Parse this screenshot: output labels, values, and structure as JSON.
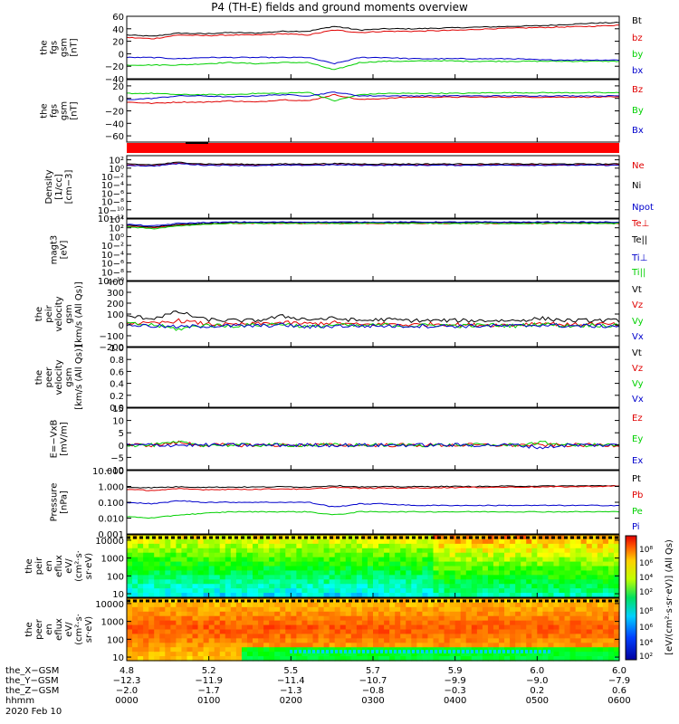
{
  "title": "P4 (TH-E) fields and ground moments overview",
  "colors": {
    "black": "#000000",
    "red": "#e00000",
    "green": "#00d000",
    "blue": "#0000cc",
    "bar": "#ff0000"
  },
  "chart_data": [
    {
      "type": "line",
      "ylabel": [
        "the",
        "fgs",
        "gsm",
        "[nT]"
      ],
      "ylim": [
        -40,
        60
      ],
      "ticks": [
        "60",
        "40",
        "20",
        "0",
        "−20",
        "−40"
      ],
      "tickvals": [
        60,
        40,
        20,
        0,
        -20,
        -40
      ],
      "series": [
        {
          "name": "Bt",
          "color": "black",
          "values": [
            30,
            28,
            33,
            32,
            34,
            33,
            36,
            36,
            44,
            38,
            40,
            40,
            41,
            42,
            43,
            44,
            45,
            47,
            49,
            50
          ]
        },
        {
          "name": "bz",
          "color": "red",
          "values": [
            26,
            24,
            30,
            29,
            30,
            30,
            32,
            30,
            38,
            34,
            36,
            36,
            37,
            38,
            40,
            41,
            42,
            43,
            44,
            46
          ]
        },
        {
          "name": "by",
          "color": "green",
          "values": [
            -18,
            -18,
            -18,
            -16,
            -14,
            -16,
            -14,
            -14,
            -26,
            -14,
            -12,
            -12,
            -11,
            -12,
            -12,
            -12,
            -12,
            -12,
            -12,
            -12
          ]
        },
        {
          "name": "bx",
          "color": "blue",
          "values": [
            -6,
            -6,
            -8,
            -6,
            -6,
            -6,
            -6,
            -6,
            -16,
            -6,
            -6,
            -8,
            -8,
            -8,
            -8,
            -8,
            -10,
            -10,
            -10,
            -10
          ]
        }
      ]
    },
    {
      "type": "line",
      "ylabel": [
        "the",
        "fgs",
        "gsm",
        "[nT]"
      ],
      "ylim": [
        -70,
        30
      ],
      "ticks": [
        "20",
        "0",
        "−20",
        "−40",
        "−60"
      ],
      "tickvals": [
        20,
        0,
        -20,
        -40,
        -60
      ],
      "series": [
        {
          "name": "Bz",
          "color": "red",
          "values": [
            -6,
            -8,
            -6,
            -6,
            -4,
            -6,
            -2,
            -4,
            6,
            -2,
            0,
            2,
            2,
            2,
            2,
            2,
            2,
            2,
            2,
            2
          ]
        },
        {
          "name": "By",
          "color": "green",
          "values": [
            8,
            8,
            6,
            6,
            6,
            8,
            8,
            10,
            -4,
            6,
            8,
            8,
            8,
            8,
            9,
            9,
            9,
            9,
            9,
            9
          ]
        },
        {
          "name": "Bx",
          "color": "blue",
          "values": [
            -2,
            0,
            4,
            4,
            2,
            4,
            6,
            4,
            10,
            4,
            4,
            4,
            4,
            4,
            4,
            4,
            4,
            4,
            4,
            4
          ]
        }
      ]
    },
    {
      "type": "line",
      "ylabel": [
        "Density",
        "[1/cc]",
        "[cm−3]"
      ],
      "log": true,
      "ylim": [
        -12,
        3
      ],
      "ticks": [
        "10²",
        "10⁰",
        "10−²",
        "10−⁴",
        "10−⁶",
        "10−⁸",
        "10−¹⁰",
        "10−¹²"
      ],
      "tickvals": [
        2,
        0,
        -2,
        -4,
        -6,
        -8,
        -10,
        -12
      ],
      "series": [
        {
          "name": "Ne",
          "color": "red",
          "values": [
            0.8,
            0.6,
            1.2,
            0.8,
            0.8,
            0.7,
            0.8,
            0.8,
            0.9,
            0.8,
            0.8,
            0.8,
            0.8,
            0.8,
            0.8,
            0.8,
            0.8,
            0.8,
            0.8,
            0.8
          ]
        },
        {
          "name": "Ni",
          "color": "black",
          "values": [
            1.0,
            0.8,
            1.4,
            1.0,
            1.0,
            0.9,
            1.0,
            1.0,
            1.1,
            1.0,
            1.0,
            1.0,
            1.0,
            1.0,
            1.0,
            1.0,
            1.0,
            1.0,
            1.0,
            1.0
          ]
        },
        {
          "name": "Npot",
          "color": "blue",
          "values": [
            0.7,
            0.5,
            1.1,
            0.7,
            0.7,
            0.6,
            0.7,
            0.7,
            0.8,
            0.7,
            0.7,
            0.7,
            0.7,
            0.7,
            0.7,
            0.7,
            0.7,
            0.7,
            0.7,
            0.7
          ]
        }
      ]
    },
    {
      "type": "line",
      "ylabel": [
        "magt3",
        "[eV]"
      ],
      "log": true,
      "ylim": [
        -10,
        4
      ],
      "ticks": [
        "10⁴",
        "10²",
        "10⁰",
        "10−²",
        "10−⁴",
        "10−⁶",
        "10−⁸",
        "10−¹⁰"
      ],
      "tickvals": [
        4,
        2,
        0,
        -2,
        -4,
        -6,
        -8,
        -10
      ],
      "series": [
        {
          "name": "Te⊥",
          "color": "red",
          "values": [
            2.4,
            2.0,
            2.6,
            2.8,
            3.0,
            3.0,
            3.0,
            3.0,
            3.0,
            3.0,
            3.0,
            3.0,
            3.0,
            3.0,
            3.0,
            3.0,
            3.0,
            3.0,
            3.0,
            3.0
          ]
        },
        {
          "name": "Te||",
          "color": "black",
          "values": [
            2.6,
            2.2,
            2.8,
            3.0,
            3.2,
            3.2,
            3.2,
            3.2,
            3.2,
            3.2,
            3.2,
            3.2,
            3.2,
            3.2,
            3.2,
            3.2,
            3.2,
            3.2,
            3.2,
            3.2
          ]
        },
        {
          "name": "Ti⊥",
          "color": "blue",
          "values": [
            2.8,
            2.4,
            3.0,
            3.2,
            3.3,
            3.3,
            3.3,
            3.3,
            3.3,
            3.3,
            3.3,
            3.3,
            3.3,
            3.3,
            3.3,
            3.3,
            3.3,
            3.3,
            3.3,
            3.3
          ]
        },
        {
          "name": "Ti||",
          "color": "green",
          "values": [
            2.2,
            1.8,
            2.4,
            2.8,
            3.0,
            3.0,
            3.0,
            3.0,
            3.0,
            3.0,
            3.0,
            3.0,
            3.0,
            3.0,
            3.0,
            3.0,
            3.0,
            3.0,
            3.0,
            3.0
          ]
        }
      ]
    },
    {
      "type": "line",
      "ylabel": [
        "the",
        "peir",
        "velocity",
        "gsm",
        "[km/s (All Qs)]"
      ],
      "ylim": [
        -200,
        400
      ],
      "ticks": [
        "400",
        "300",
        "200",
        "100",
        "0",
        "−100",
        "−200"
      ],
      "tickvals": [
        400,
        300,
        200,
        100,
        0,
        -100,
        -200
      ],
      "series": [
        {
          "name": "Vt",
          "color": "black",
          "values": [
            80,
            60,
            120,
            50,
            40,
            40,
            80,
            50,
            60,
            40,
            50,
            40,
            40,
            40,
            40,
            40,
            60,
            40,
            40,
            40
          ]
        },
        {
          "name": "Vz",
          "color": "red",
          "values": [
            20,
            10,
            40,
            10,
            0,
            10,
            20,
            10,
            20,
            0,
            10,
            0,
            10,
            0,
            0,
            0,
            20,
            0,
            10,
            0
          ]
        },
        {
          "name": "Vy",
          "color": "green",
          "values": [
            10,
            0,
            -40,
            0,
            -10,
            0,
            10,
            -20,
            0,
            -10,
            0,
            -10,
            0,
            -10,
            0,
            -10,
            10,
            -10,
            0,
            -10
          ]
        },
        {
          "name": "Vx",
          "color": "blue",
          "values": [
            0,
            -10,
            -20,
            -10,
            -10,
            -10,
            0,
            -20,
            -10,
            -10,
            -10,
            -10,
            -10,
            -10,
            -10,
            -10,
            0,
            -10,
            -10,
            -10
          ]
        }
      ]
    },
    {
      "type": "line",
      "ylabel": [
        "the",
        "peer",
        "velocity",
        "gsm",
        "[km/s (All Qs)]"
      ],
      "ylim": [
        0,
        1
      ],
      "ticks": [
        "1.0",
        "0.8",
        "0.6",
        "0.4",
        "0.2",
        "0.0"
      ],
      "tickvals": [
        1,
        0.8,
        0.6,
        0.4,
        0.2,
        0
      ],
      "series": [
        {
          "name": "Vt",
          "color": "black",
          "values": []
        },
        {
          "name": "Vz",
          "color": "red",
          "values": []
        },
        {
          "name": "Vy",
          "color": "green",
          "values": []
        },
        {
          "name": "Vx",
          "color": "blue",
          "values": []
        }
      ]
    },
    {
      "type": "line",
      "ylabel": [
        "E=−VxB",
        "[mV/m]"
      ],
      "ylim": [
        -10,
        15
      ],
      "ticks": [
        "15",
        "10",
        "5",
        "0",
        "−5",
        "−10"
      ],
      "tickvals": [
        15,
        10,
        5,
        0,
        -5,
        -10
      ],
      "series": [
        {
          "name": "Ez",
          "color": "red",
          "values": [
            0,
            0,
            1,
            0,
            0,
            0,
            0,
            0,
            0,
            0,
            0,
            0,
            0,
            0,
            0,
            0,
            0,
            0,
            0,
            0
          ]
        },
        {
          "name": "Ey",
          "color": "green",
          "values": [
            0,
            0,
            1,
            0,
            0,
            0,
            0,
            0,
            0,
            0,
            0,
            0,
            0,
            0,
            0,
            0,
            1,
            0,
            0,
            0
          ]
        },
        {
          "name": "Ex",
          "color": "blue",
          "values": [
            0,
            0,
            0,
            0,
            0,
            0,
            0,
            0,
            0,
            0,
            0,
            0,
            0,
            0,
            0,
            0,
            -1,
            0,
            0,
            0
          ]
        }
      ]
    },
    {
      "type": "line",
      "ylabel": [
        "Pressure",
        "[nPa]"
      ],
      "log": true,
      "ylim": [
        -3,
        1
      ],
      "ticks": [
        "10.000",
        "1.000",
        "0.100",
        "0.010",
        "0.001"
      ],
      "tickvals": [
        1,
        0,
        -1,
        -2,
        -3
      ],
      "series": [
        {
          "name": "Pt",
          "color": "black",
          "values": [
            -0.05,
            -0.08,
            -0.02,
            -0.05,
            -0.04,
            -0.04,
            -0.02,
            -0.04,
            0.05,
            -0.03,
            -0.02,
            -0.02,
            0,
            0,
            0,
            0.02,
            0.02,
            0.03,
            0.04,
            0.05
          ]
        },
        {
          "name": "Pb",
          "color": "red",
          "values": [
            -0.2,
            -0.25,
            -0.15,
            -0.2,
            -0.18,
            -0.18,
            -0.15,
            -0.18,
            -0.05,
            -0.12,
            -0.1,
            -0.1,
            -0.08,
            -0.06,
            -0.05,
            -0.04,
            -0.03,
            -0.02,
            0,
            0.02
          ]
        },
        {
          "name": "Pe",
          "color": "green",
          "values": [
            -1.9,
            -2.0,
            -1.8,
            -1.7,
            -1.6,
            -1.6,
            -1.6,
            -1.6,
            -1.8,
            -1.6,
            -1.6,
            -1.6,
            -1.6,
            -1.6,
            -1.6,
            -1.6,
            -1.6,
            -1.6,
            -1.6,
            -1.6
          ]
        },
        {
          "name": "Pi",
          "color": "blue",
          "values": [
            -1.0,
            -1.1,
            -0.9,
            -1.0,
            -1.0,
            -1.0,
            -1.0,
            -1.0,
            -1.3,
            -1.1,
            -1.1,
            -1.2,
            -1.2,
            -1.2,
            -1.2,
            -1.2,
            -1.2,
            -1.2,
            -1.2,
            -1.2
          ]
        }
      ]
    },
    {
      "type": "heatmap",
      "ylabel": [
        "the",
        "peir",
        "en",
        "eflux",
        "eV/",
        "(cm²·s·",
        "sr·eV)"
      ],
      "ticks": [
        "10000",
        "1000",
        "100",
        "10"
      ],
      "tickvals": [
        4,
        3,
        2,
        1
      ],
      "ylim": [
        0.8,
        4.3
      ]
    },
    {
      "type": "heatmap",
      "ylabel": [
        "the",
        "peer",
        "en",
        "eflux",
        "eV/",
        "(cm²·s·",
        "sr·eV)"
      ],
      "ticks": [
        "10000",
        "1000",
        "100",
        "10"
      ],
      "tickvals": [
        4,
        3,
        2,
        1
      ],
      "ylim": [
        0.8,
        4.3
      ]
    }
  ],
  "colorbar": {
    "label": "[eV/(cm²·s·sr·eV)] (All Qs)",
    "ticks": [
      "10⁸",
      "10⁶",
      "10⁴",
      "10²",
      "10⁸",
      "10⁶",
      "10⁴",
      "10²"
    ]
  },
  "xaxis": {
    "rows": [
      {
        "label": "the_X−GSM",
        "values": [
          "4.8",
          "5.2",
          "5.5",
          "5.7",
          "5.9",
          "6.0",
          "6.0"
        ]
      },
      {
        "label": "the_Y−GSM",
        "values": [
          "−12.3",
          "−11.9",
          "−11.4",
          "−10.7",
          "−9.9",
          "−9.0",
          "−7.9"
        ]
      },
      {
        "label": "the_Z−GSM",
        "values": [
          "−2.0",
          "−1.7",
          "−1.3",
          "−0.8",
          "−0.3",
          "0.2",
          "0.6"
        ]
      },
      {
        "label": "hhmm",
        "values": [
          "0000",
          "0100",
          "0200",
          "0300",
          "0400",
          "0500",
          "0600"
        ]
      }
    ],
    "date": "2020 Feb 10"
  }
}
